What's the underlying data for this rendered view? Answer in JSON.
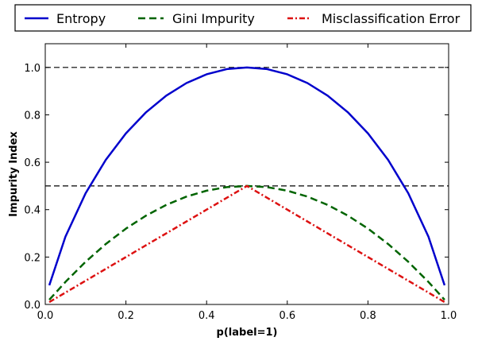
{
  "chart_data": {
    "type": "line",
    "title": "",
    "xlabel": "p(label=1)",
    "ylabel": "Impurity Index",
    "xlim": [
      0.0,
      1.0
    ],
    "ylim": [
      0.0,
      1.1
    ],
    "xticks": [
      "0.0",
      "0.2",
      "0.4",
      "0.6",
      "0.8",
      "1.0"
    ],
    "yticks": [
      "0.0",
      "0.2",
      "0.4",
      "0.6",
      "0.8",
      "1.0"
    ],
    "grid": false,
    "legend_placement": "top, above plot, horizontal",
    "reference_lines": [
      {
        "y": 1.0,
        "style": "dashed",
        "color": "#000000"
      },
      {
        "y": 0.5,
        "style": "dashed",
        "color": "#000000"
      }
    ],
    "x": [
      0.01,
      0.05,
      0.1,
      0.15,
      0.2,
      0.25,
      0.3,
      0.35,
      0.4,
      0.45,
      0.5,
      0.55,
      0.6,
      0.65,
      0.7,
      0.75,
      0.8,
      0.85,
      0.9,
      0.95,
      0.99
    ],
    "series": [
      {
        "name": "Entropy",
        "color": "#0000cc",
        "style": "solid",
        "values": [
          0.081,
          0.286,
          0.469,
          0.61,
          0.722,
          0.811,
          0.881,
          0.934,
          0.971,
          0.993,
          1.0,
          0.993,
          0.971,
          0.934,
          0.881,
          0.811,
          0.722,
          0.61,
          0.469,
          0.286,
          0.081
        ]
      },
      {
        "name": "Gini Impurity",
        "color": "#006400",
        "style": "dashed",
        "values": [
          0.0198,
          0.095,
          0.18,
          0.255,
          0.32,
          0.375,
          0.42,
          0.455,
          0.48,
          0.495,
          0.5,
          0.495,
          0.48,
          0.455,
          0.42,
          0.375,
          0.32,
          0.255,
          0.18,
          0.095,
          0.0198
        ]
      },
      {
        "name": "Misclassification Error",
        "color": "#dd1111",
        "style": "dashdot",
        "values": [
          0.01,
          0.05,
          0.1,
          0.15,
          0.2,
          0.25,
          0.3,
          0.35,
          0.4,
          0.45,
          0.5,
          0.45,
          0.4,
          0.35,
          0.3,
          0.25,
          0.2,
          0.15,
          0.1,
          0.05,
          0.01
        ]
      }
    ]
  }
}
